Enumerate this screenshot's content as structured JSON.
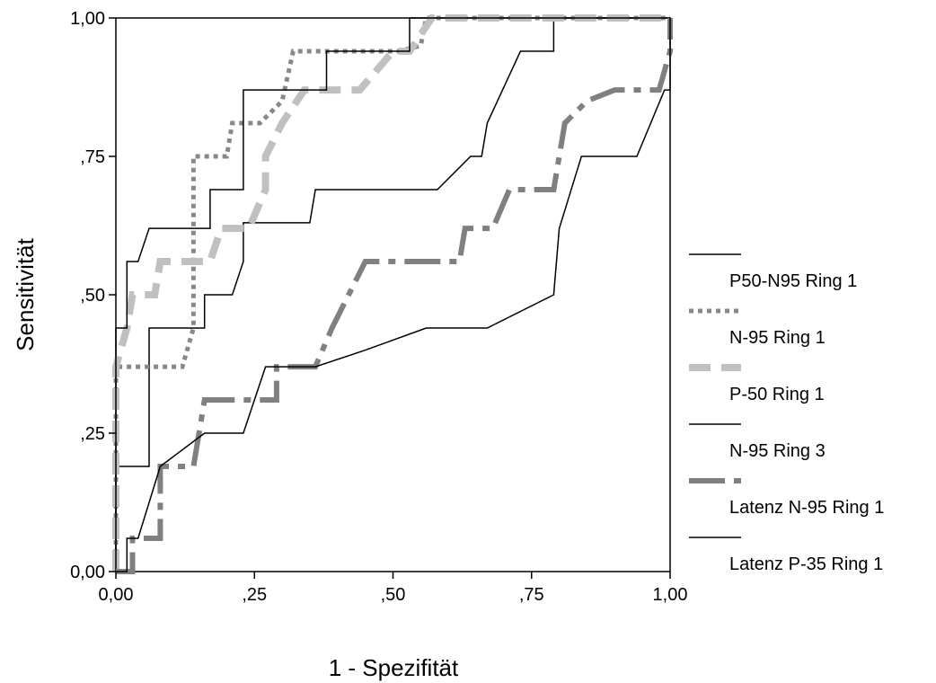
{
  "chart_data": {
    "type": "line",
    "xlabel": "1 - Spezifität",
    "ylabel": "Sensitivität",
    "xlim": [
      0,
      1
    ],
    "ylim": [
      0,
      1
    ],
    "x_ticks": [
      {
        "value": 0,
        "label": "0,00"
      },
      {
        "value": 0.25,
        "label": ",25"
      },
      {
        "value": 0.5,
        "label": ",50"
      },
      {
        "value": 0.75,
        "label": ",75"
      },
      {
        "value": 1,
        "label": "1,00"
      }
    ],
    "y_ticks": [
      {
        "value": 0,
        "label": "0,00"
      },
      {
        "value": 0.25,
        "label": ",25"
      },
      {
        "value": 0.5,
        "label": ",50"
      },
      {
        "value": 0.75,
        "label": ",75"
      },
      {
        "value": 1,
        "label": "1,00"
      }
    ],
    "grid": false,
    "legend_position": "right",
    "series": [
      {
        "name": "P50-N95 Ring 1",
        "color": "#000000",
        "style": "solid-thin",
        "points": [
          [
            0,
            0
          ],
          [
            0,
            0.19
          ],
          [
            0.06,
            0.19
          ],
          [
            0.06,
            0.44
          ],
          [
            0.16,
            0.44
          ],
          [
            0.16,
            0.5
          ],
          [
            0.21,
            0.5
          ],
          [
            0.23,
            0.56
          ],
          [
            0.23,
            0.63
          ],
          [
            0.35,
            0.63
          ],
          [
            0.36,
            0.69
          ],
          [
            0.58,
            0.69
          ],
          [
            0.64,
            0.75
          ],
          [
            0.66,
            0.75
          ],
          [
            0.67,
            0.81
          ],
          [
            0.73,
            0.94
          ],
          [
            0.79,
            0.94
          ],
          [
            0.79,
            1
          ],
          [
            1,
            1
          ]
        ]
      },
      {
        "name": "N-95 Ring 1",
        "color": "#888888",
        "style": "dotted",
        "points": [
          [
            0,
            0
          ],
          [
            0,
            0.37
          ],
          [
            0.12,
            0.37
          ],
          [
            0.14,
            0.44
          ],
          [
            0.14,
            0.75
          ],
          [
            0.2,
            0.75
          ],
          [
            0.21,
            0.81
          ],
          [
            0.26,
            0.81
          ],
          [
            0.3,
            0.85
          ],
          [
            0.32,
            0.94
          ],
          [
            0.51,
            0.94
          ],
          [
            0.55,
            0.95
          ],
          [
            0.56,
            1
          ],
          [
            1,
            1
          ]
        ]
      },
      {
        "name": "P-50 Ring 1",
        "color": "#c0c0c0",
        "style": "dashed-thick",
        "points": [
          [
            0,
            0
          ],
          [
            0,
            0.37
          ],
          [
            0.02,
            0.44
          ],
          [
            0.03,
            0.5
          ],
          [
            0.07,
            0.5
          ],
          [
            0.08,
            0.56
          ],
          [
            0.17,
            0.56
          ],
          [
            0.19,
            0.62
          ],
          [
            0.24,
            0.62
          ],
          [
            0.27,
            0.69
          ],
          [
            0.27,
            0.75
          ],
          [
            0.3,
            0.81
          ],
          [
            0.34,
            0.87
          ],
          [
            0.44,
            0.87
          ],
          [
            0.5,
            0.94
          ],
          [
            0.53,
            0.94
          ],
          [
            0.57,
            1
          ],
          [
            1,
            1
          ]
        ]
      },
      {
        "name": "N-95 Ring 3",
        "color": "#000000",
        "style": "solid-thin",
        "points": [
          [
            0,
            0
          ],
          [
            0,
            0.44
          ],
          [
            0.02,
            0.44
          ],
          [
            0.02,
            0.56
          ],
          [
            0.04,
            0.56
          ],
          [
            0.06,
            0.62
          ],
          [
            0.17,
            0.62
          ],
          [
            0.17,
            0.69
          ],
          [
            0.23,
            0.69
          ],
          [
            0.23,
            0.87
          ],
          [
            0.38,
            0.87
          ],
          [
            0.38,
            0.94
          ],
          [
            0.53,
            0.94
          ],
          [
            0.53,
            1
          ],
          [
            1,
            1
          ]
        ]
      },
      {
        "name": "Latenz N-95 Ring 1",
        "color": "#808080",
        "style": "dashdot-thick",
        "points": [
          [
            0,
            0
          ],
          [
            0.03,
            0
          ],
          [
            0.03,
            0.06
          ],
          [
            0.08,
            0.06
          ],
          [
            0.08,
            0.19
          ],
          [
            0.14,
            0.19
          ],
          [
            0.15,
            0.25
          ],
          [
            0.16,
            0.31
          ],
          [
            0.29,
            0.31
          ],
          [
            0.29,
            0.37
          ],
          [
            0.36,
            0.37
          ],
          [
            0.39,
            0.44
          ],
          [
            0.45,
            0.56
          ],
          [
            0.62,
            0.56
          ],
          [
            0.63,
            0.62
          ],
          [
            0.68,
            0.62
          ],
          [
            0.71,
            0.69
          ],
          [
            0.79,
            0.69
          ],
          [
            0.81,
            0.81
          ],
          [
            0.85,
            0.85
          ],
          [
            0.9,
            0.87
          ],
          [
            0.98,
            0.87
          ],
          [
            1,
            0.94
          ],
          [
            1,
            1
          ]
        ]
      },
      {
        "name": "Latenz P-35 Ring 1",
        "color": "#000000",
        "style": "solid-thin",
        "points": [
          [
            0,
            0
          ],
          [
            0.02,
            0
          ],
          [
            0.02,
            0.06
          ],
          [
            0.04,
            0.06
          ],
          [
            0.08,
            0.19
          ],
          [
            0.16,
            0.25
          ],
          [
            0.23,
            0.25
          ],
          [
            0.27,
            0.37
          ],
          [
            0.36,
            0.37
          ],
          [
            0.45,
            0.4
          ],
          [
            0.56,
            0.44
          ],
          [
            0.67,
            0.44
          ],
          [
            0.79,
            0.5
          ],
          [
            0.8,
            0.62
          ],
          [
            0.84,
            0.75
          ],
          [
            0.94,
            0.75
          ],
          [
            0.99,
            0.87
          ],
          [
            1,
            0.87
          ],
          [
            1,
            1
          ]
        ]
      }
    ]
  }
}
